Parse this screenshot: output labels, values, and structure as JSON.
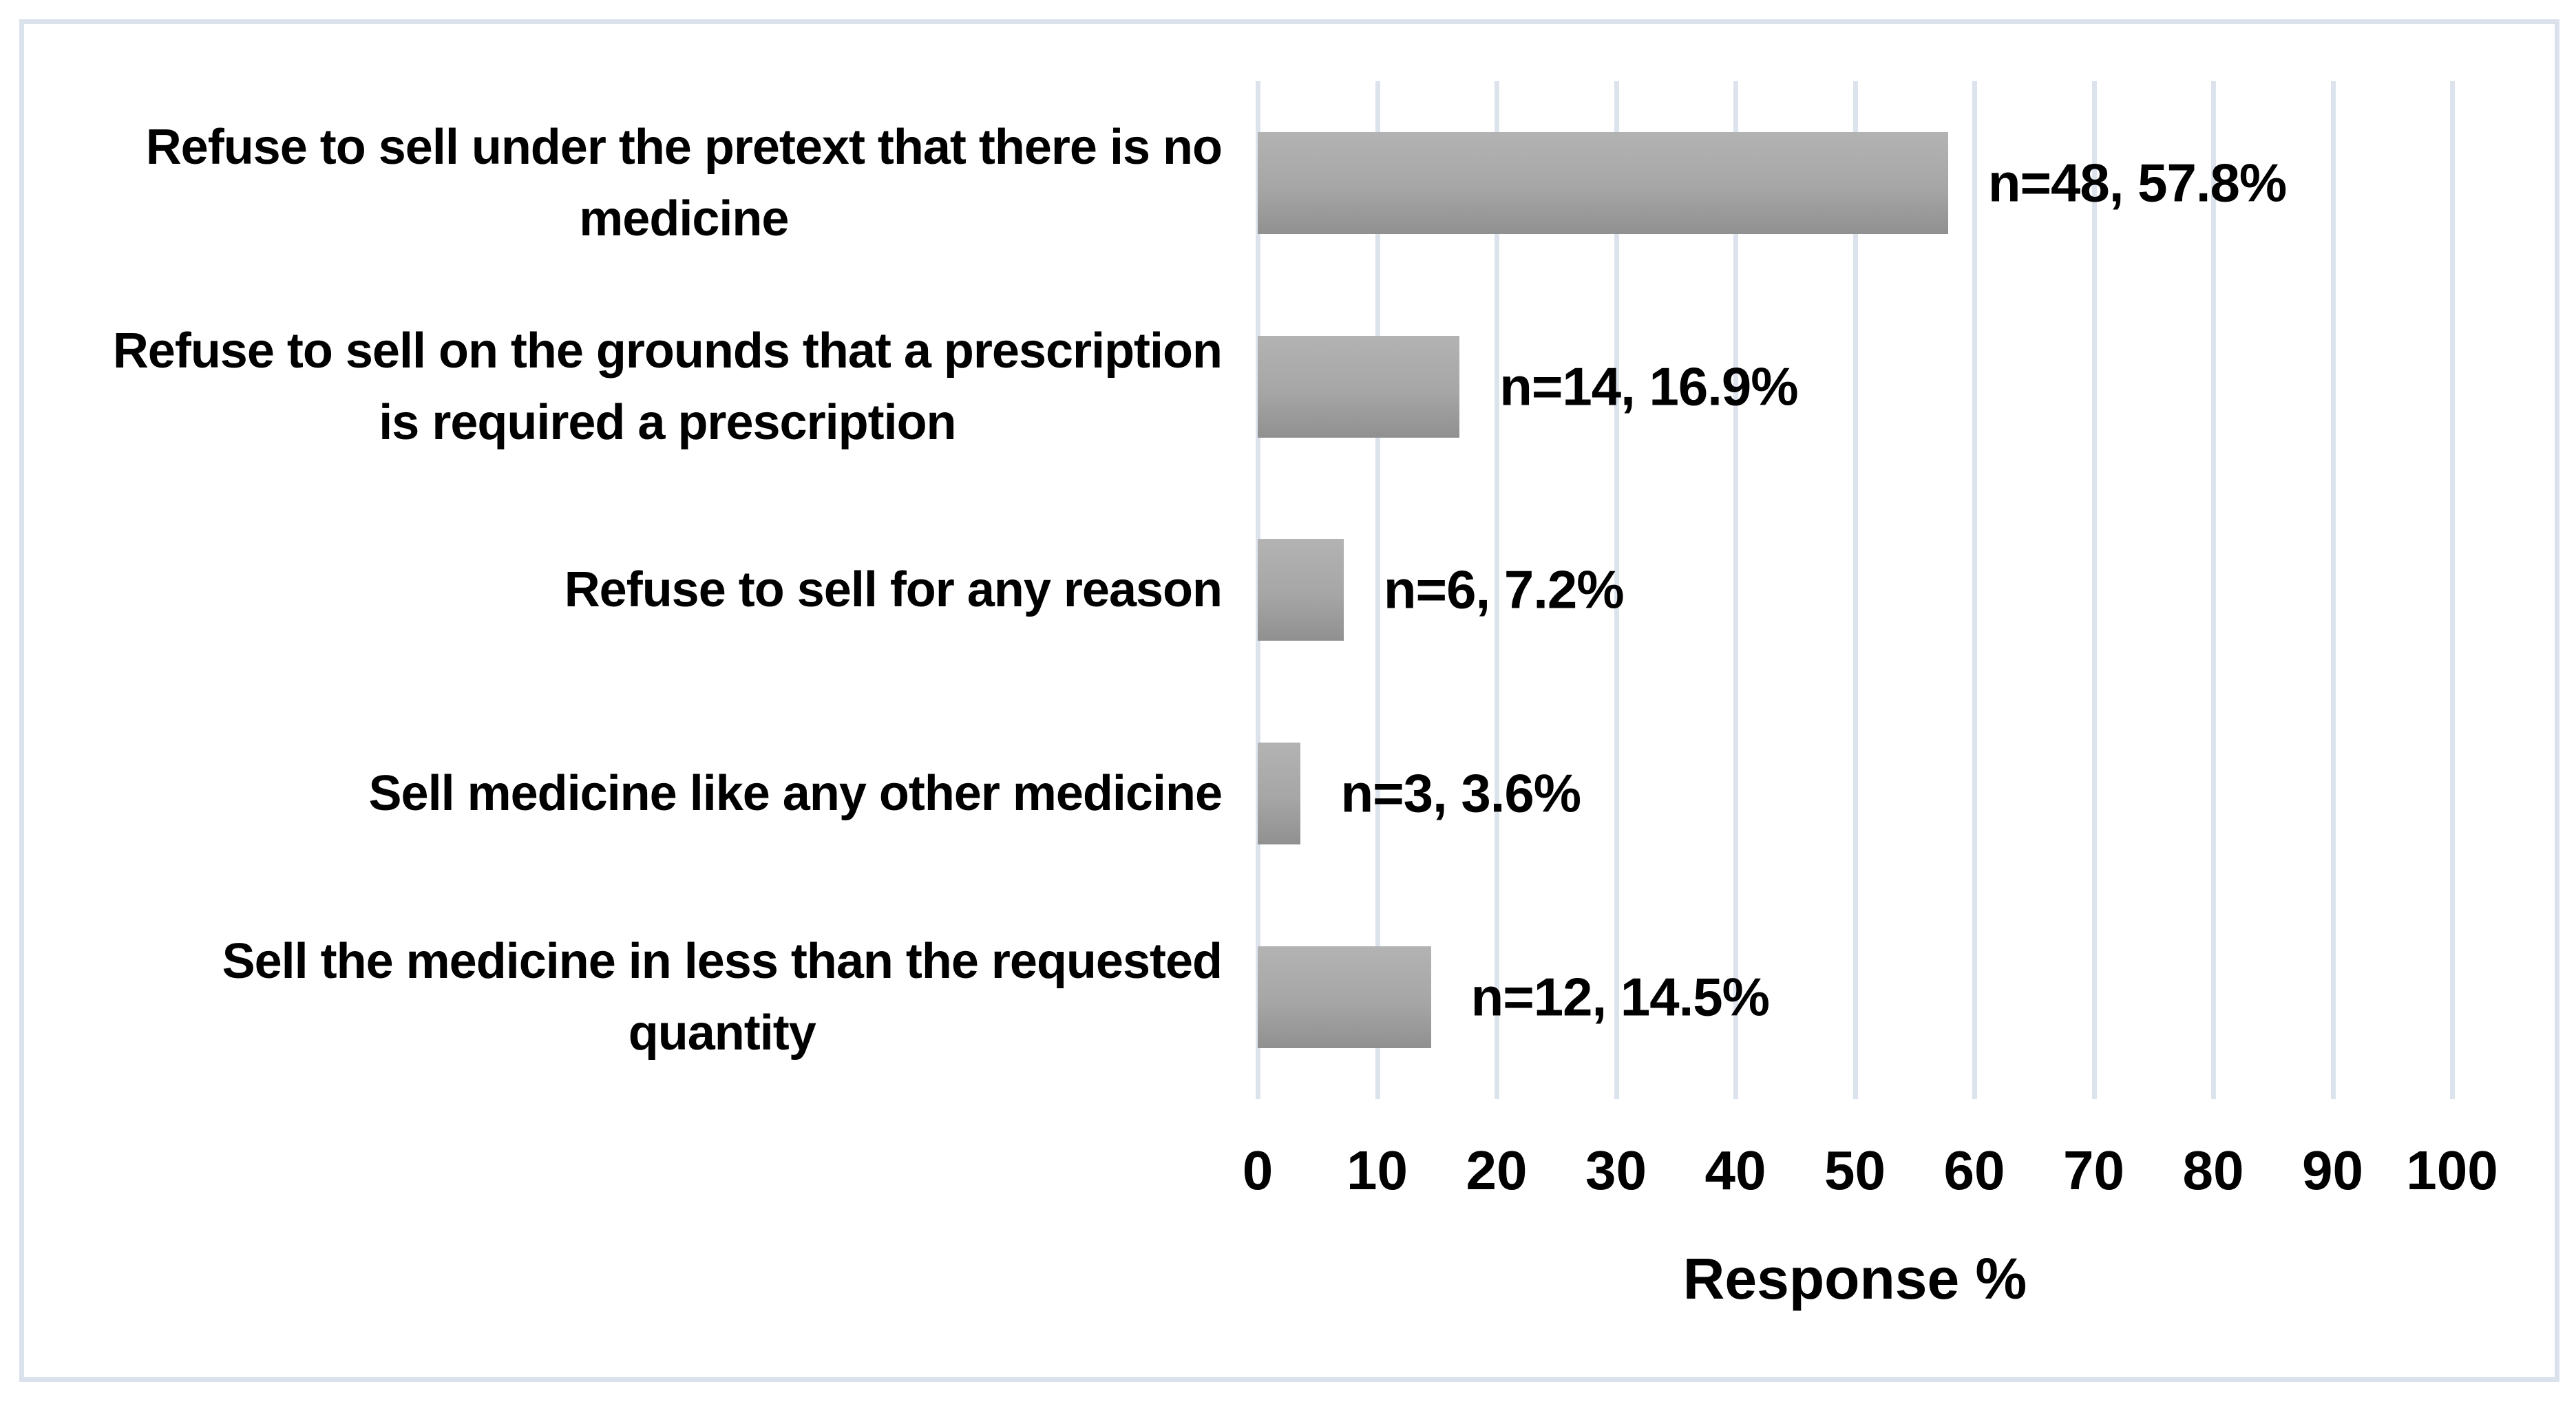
{
  "chart_data": {
    "type": "bar",
    "orientation": "horizontal",
    "title": "",
    "xlabel": "Response %",
    "ylabel": "",
    "xlim": [
      0,
      100
    ],
    "grid": "vertical-gridlines-on",
    "legend": "none",
    "categories": [
      "Refuse to sell under the pretext that there is no medicine",
      "Refuse to sell on the grounds that a prescription is required a prescription",
      "Refuse to sell for any reason",
      "Sell medicine like any other medicine",
      "Sell the medicine in less than the requested quantity"
    ],
    "category_lines": [
      [
        "Refuse to sell under the pretext that there is no",
        "medicine"
      ],
      [
        "Refuse to sell on the grounds that a prescription",
        "is required a prescription"
      ],
      [
        "Refuse to sell for any reason"
      ],
      [
        "Sell medicine like any other medicine"
      ],
      [
        "Sell the medicine in less than the requested",
        "quantity"
      ]
    ],
    "values": [
      57.8,
      16.9,
      7.2,
      3.6,
      14.5
    ],
    "counts": [
      48,
      14,
      6,
      3,
      12
    ],
    "bar_labels": [
      "n=48, 57.8%",
      "n=14, 16.9%",
      "n=6, 7.2%",
      "n=3, 3.6%",
      "n=12, 14.5%"
    ],
    "x_ticks": [
      "0",
      "10",
      "20",
      "30",
      "40",
      "50",
      "60",
      "70",
      "80",
      "90",
      "100"
    ],
    "colors": {
      "bar_gradient_top": "#b3b3b3",
      "bar_gradient_bottom": "#909090",
      "gridline": "#dce3ed",
      "frame_border": "#dbe2ec",
      "text": "#000000",
      "background": "#ffffff"
    }
  }
}
